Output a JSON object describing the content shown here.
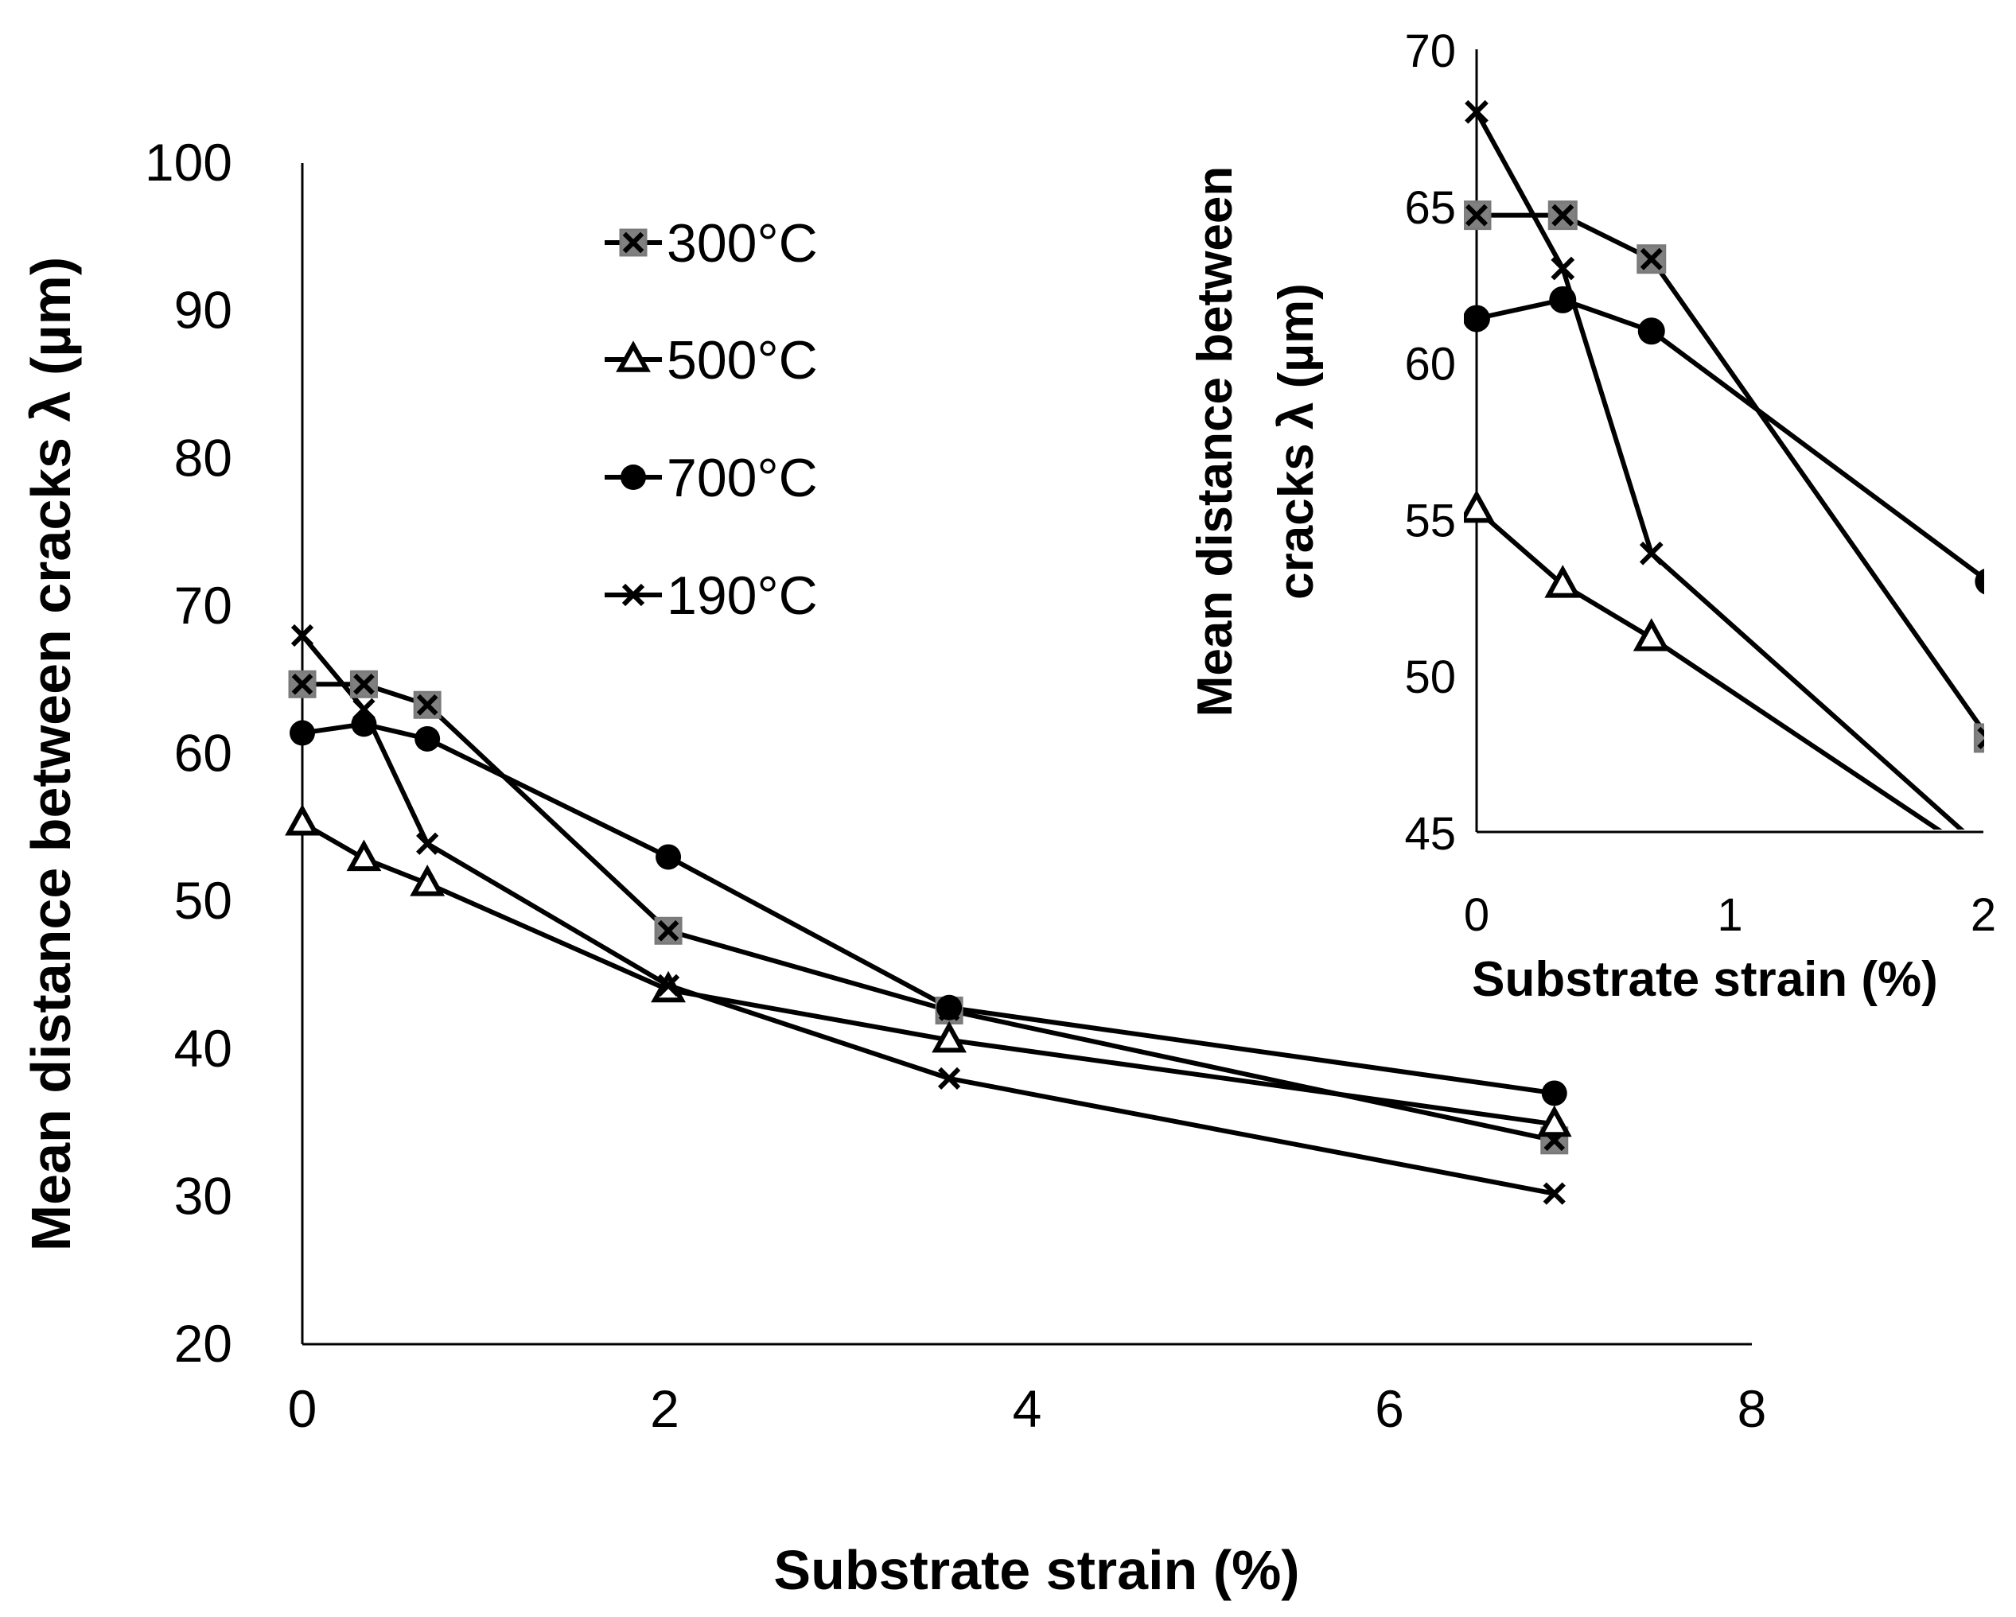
{
  "chart_data": [
    {
      "type": "line",
      "xlabel": "Substrate strain (%)",
      "ylabel": "Mean distance between cracks  λ (µm)",
      "xlim": [
        0,
        8
      ],
      "ylim": [
        20,
        100
      ],
      "xticks": [
        "0",
        "2",
        "4",
        "6",
        "8"
      ],
      "yticks": [
        "20",
        "30",
        "40",
        "50",
        "60",
        "70",
        "80",
        "90",
        "100"
      ],
      "legend": "upper-middle",
      "series": [
        {
          "name": "300°C",
          "marker": "square-x",
          "x": [
            0,
            0.34,
            0.69,
            2.02,
            3.57,
            6.91
          ],
          "y": [
            64.7,
            64.7,
            63.3,
            48.0,
            42.6,
            33.8
          ]
        },
        {
          "name": "500°C",
          "marker": "triangle",
          "x": [
            0,
            0.34,
            0.69,
            2.02,
            3.57,
            6.91
          ],
          "y": [
            55.3,
            52.9,
            51.2,
            44.0,
            40.6,
            34.9
          ]
        },
        {
          "name": "700°C",
          "marker": "circle",
          "x": [
            0,
            0.34,
            0.69,
            2.02,
            3.57,
            6.91
          ],
          "y": [
            61.4,
            62.0,
            61.0,
            53.0,
            42.8,
            37.0
          ]
        },
        {
          "name": "190°C",
          "marker": "x",
          "x": [
            0,
            0.34,
            0.69,
            2.02,
            3.57,
            6.91
          ],
          "y": [
            68.0,
            63.0,
            53.9,
            44.3,
            38.0,
            30.2
          ]
        }
      ]
    },
    {
      "type": "line",
      "role": "inset",
      "xlabel": "Substrate strain (%)",
      "ylabel_lines": [
        "Mean distance between",
        "cracks  λ (µm)"
      ],
      "xlim": [
        0,
        2
      ],
      "ylim": [
        45,
        70
      ],
      "xticks": [
        "0",
        "1",
        "2"
      ],
      "yticks": [
        "45",
        "50",
        "55",
        "60",
        "65",
        "70"
      ]
    }
  ]
}
